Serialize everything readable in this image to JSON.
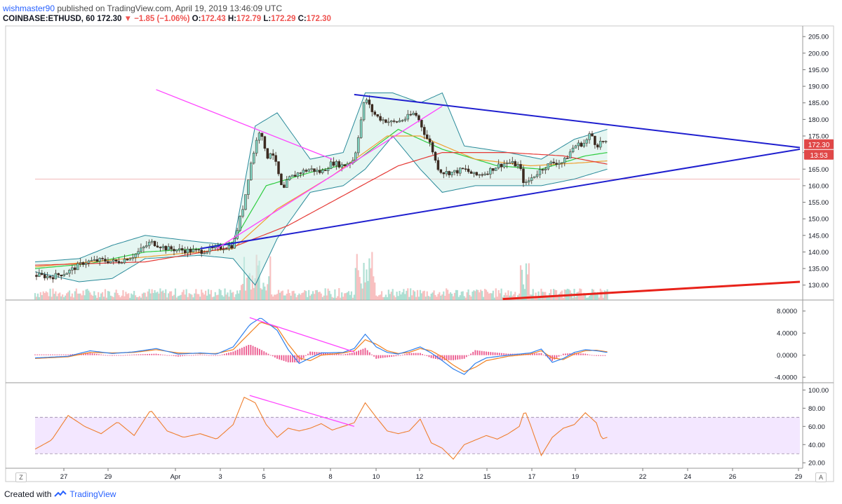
{
  "header": {
    "author": "wishmaster90",
    "published": "published on TradingView.com, April 19, 2019 13:46:09 UTC",
    "symbol": "COINBASE:ETHUSD, 60",
    "last": "172.30",
    "change": "−1.85 (−1.06%)",
    "o_label": "O:",
    "o": "172.43",
    "h_label": "H:",
    "h": "172.79",
    "l_label": "L:",
    "l": "172.29",
    "c_label": "C:",
    "c": "172.30"
  },
  "footer": {
    "created_with": "Created with",
    "brand": "TradingView"
  },
  "corner_left": "Z",
  "corner_right": "A",
  "price_badge": {
    "price": "172.30",
    "countdown": "13:53"
  },
  "colors": {
    "up": "#26a69a",
    "down": "#ef5350",
    "candle": "#3b2a20",
    "triangle": "#1f1fcf",
    "magenta": "#ff44ff",
    "ma_fast": "#2ecc40",
    "ma_mid": "#f0a030",
    "ma_slow": "#e53935",
    "bollinger": "#2a8a9a",
    "rsi": "#ef7f2f",
    "rsi_band": "#e9d4ff"
  },
  "chart_data": [
    {
      "type": "candlestick",
      "panel": "price",
      "symbol": "COINBASE:ETHUSD",
      "interval": "60",
      "x_ticks": [
        "27",
        "29",
        "Apr",
        "3",
        "5",
        "8",
        "10",
        "12",
        "15",
        "17",
        "19",
        "22",
        "24",
        "26",
        "29"
      ],
      "y_ticks": [
        130,
        135,
        140,
        145,
        150,
        155,
        160,
        165,
        170,
        175,
        180,
        185,
        190,
        195,
        200,
        205
      ],
      "ylim": [
        125.5,
        208
      ],
      "price_path": [
        [
          0,
          133
        ],
        [
          3,
          132.5
        ],
        [
          6,
          134
        ],
        [
          9,
          137
        ],
        [
          12,
          137.5
        ],
        [
          15,
          137
        ],
        [
          18,
          139
        ],
        [
          21,
          143
        ],
        [
          24,
          141
        ],
        [
          27,
          140.5
        ],
        [
          30,
          140.2
        ],
        [
          33,
          141
        ],
        [
          36,
          142
        ],
        [
          38,
          155
        ],
        [
          39,
          165
        ],
        [
          40,
          172
        ],
        [
          41,
          178
        ],
        [
          42,
          168
        ],
        [
          43,
          171
        ],
        [
          44,
          165
        ],
        [
          45,
          158
        ],
        [
          46,
          162
        ],
        [
          47,
          163
        ],
        [
          48,
          164
        ],
        [
          50,
          165
        ],
        [
          52,
          164
        ],
        [
          54,
          167
        ],
        [
          56,
          166
        ],
        [
          58,
          168
        ],
        [
          60,
          187
        ],
        [
          61,
          183
        ],
        [
          62,
          181
        ],
        [
          63,
          180
        ],
        [
          65,
          179
        ],
        [
          67,
          180
        ],
        [
          69,
          182
        ],
        [
          70,
          179
        ],
        [
          71,
          175
        ],
        [
          72,
          172
        ],
        [
          73,
          166
        ],
        [
          74,
          164
        ],
        [
          76,
          164
        ],
        [
          78,
          165
        ],
        [
          80,
          163
        ],
        [
          82,
          164
        ],
        [
          84,
          166
        ],
        [
          86,
          167
        ],
        [
          88,
          166
        ],
        [
          89,
          160
        ],
        [
          90,
          162
        ],
        [
          92,
          165
        ],
        [
          94,
          167
        ],
        [
          96,
          167
        ],
        [
          98,
          172
        ],
        [
          100,
          173
        ],
        [
          101,
          176
        ],
        [
          102,
          172
        ],
        [
          103,
          173.5
        ],
        [
          104,
          172.3
        ]
      ],
      "moving_averages": [
        {
          "name": "fast",
          "path": [
            [
              0,
              135
            ],
            [
              10,
              136.5
            ],
            [
              20,
              140
            ],
            [
              30,
              141
            ],
            [
              36,
              143
            ],
            [
              42,
              160
            ],
            [
              50,
              164
            ],
            [
              58,
              167
            ],
            [
              66,
              177
            ],
            [
              74,
              171
            ],
            [
              84,
              166
            ],
            [
              92,
              165
            ],
            [
              100,
              169
            ],
            [
              104,
              170
            ]
          ]
        },
        {
          "name": "mid",
          "path": [
            [
              0,
              135.5
            ],
            [
              20,
              138.5
            ],
            [
              36,
              141
            ],
            [
              44,
              153
            ],
            [
              54,
              163
            ],
            [
              64,
              175
            ],
            [
              70,
              175
            ],
            [
              80,
              168
            ],
            [
              90,
              166
            ],
            [
              100,
              167
            ],
            [
              104,
              167.5
            ]
          ]
        },
        {
          "name": "slow",
          "path": [
            [
              0,
              136
            ],
            [
              20,
              137
            ],
            [
              36,
              141.5
            ],
            [
              46,
              148
            ],
            [
              56,
              157
            ],
            [
              66,
              166
            ],
            [
              74,
              170
            ],
            [
              86,
              170
            ],
            [
              96,
              169
            ],
            [
              104,
              166.5
            ]
          ]
        }
      ],
      "bollinger": {
        "upper": [
          [
            0,
            137
          ],
          [
            8,
            138
          ],
          [
            14,
            142
          ],
          [
            20,
            145
          ],
          [
            30,
            143
          ],
          [
            36,
            142
          ],
          [
            40,
            178
          ],
          [
            44,
            182
          ],
          [
            50,
            168
          ],
          [
            56,
            170
          ],
          [
            60,
            188
          ],
          [
            65,
            188
          ],
          [
            70,
            185
          ],
          [
            74,
            188
          ],
          [
            78,
            172
          ],
          [
            86,
            170
          ],
          [
            92,
            168
          ],
          [
            98,
            174
          ],
          [
            104,
            177
          ]
        ],
        "lower": [
          [
            0,
            134
          ],
          [
            8,
            131
          ],
          [
            14,
            132
          ],
          [
            20,
            138
          ],
          [
            30,
            139
          ],
          [
            36,
            138
          ],
          [
            40,
            130
          ],
          [
            44,
            144
          ],
          [
            50,
            158
          ],
          [
            56,
            160
          ],
          [
            60,
            165
          ],
          [
            65,
            175
          ],
          [
            70,
            165
          ],
          [
            74,
            158
          ],
          [
            80,
            160
          ],
          [
            86,
            160
          ],
          [
            92,
            160
          ],
          [
            98,
            162
          ],
          [
            104,
            165
          ]
        ]
      },
      "trendlines": [
        {
          "name": "triangle-upper",
          "from": [
            58,
            187.5
          ],
          "to": [
            139,
            171.5
          ]
        },
        {
          "name": "triangle-lower",
          "from": [
            30,
            141
          ],
          "to": [
            139,
            171
          ]
        },
        {
          "name": "magenta-down",
          "from": [
            22,
            189
          ],
          "to": [
            54,
            168
          ]
        },
        {
          "name": "magenta-up",
          "from": [
            33,
            141
          ],
          "to": [
            74,
            184
          ]
        },
        {
          "name": "red-support",
          "from": [
            85,
            125.8
          ],
          "to": [
            139,
            131
          ]
        }
      ],
      "last_price": 172.3
    },
    {
      "type": "line",
      "panel": "macd",
      "y_ticks": [
        -4.0,
        0.0,
        4.0,
        8.0
      ],
      "ylim": [
        -5.0,
        10.0
      ],
      "macd": [
        [
          0,
          -0.5
        ],
        [
          6,
          -0.2
        ],
        [
          10,
          0.8
        ],
        [
          14,
          0.3
        ],
        [
          18,
          0.6
        ],
        [
          22,
          1.2
        ],
        [
          26,
          0.2
        ],
        [
          30,
          0.4
        ],
        [
          33,
          0.2
        ],
        [
          36,
          1.5
        ],
        [
          39,
          5.5
        ],
        [
          41,
          6.8
        ],
        [
          44,
          4.5
        ],
        [
          46,
          1.0
        ],
        [
          48,
          -1.5
        ],
        [
          50,
          -0.5
        ],
        [
          52,
          0.4
        ],
        [
          56,
          0.5
        ],
        [
          58,
          1.2
        ],
        [
          60,
          3.8
        ],
        [
          62,
          1.5
        ],
        [
          64,
          0.5
        ],
        [
          66,
          0.2
        ],
        [
          68,
          0.8
        ],
        [
          70,
          1.5
        ],
        [
          72,
          0.4
        ],
        [
          74,
          -1.0
        ],
        [
          76,
          -2.5
        ],
        [
          78,
          -3.5
        ],
        [
          80,
          -1.5
        ],
        [
          82,
          -0.5
        ],
        [
          86,
          0.0
        ],
        [
          90,
          0.4
        ],
        [
          92,
          1.1
        ],
        [
          94,
          -1.3
        ],
        [
          96,
          -0.6
        ],
        [
          98,
          0.5
        ],
        [
          100,
          1.0
        ],
        [
          102,
          0.8
        ],
        [
          104,
          0.5
        ]
      ],
      "signal": [
        [
          0,
          -0.6
        ],
        [
          6,
          -0.3
        ],
        [
          10,
          0.5
        ],
        [
          14,
          0.4
        ],
        [
          18,
          0.5
        ],
        [
          22,
          1.0
        ],
        [
          26,
          0.4
        ],
        [
          30,
          0.3
        ],
        [
          33,
          0.3
        ],
        [
          36,
          1.0
        ],
        [
          39,
          4.0
        ],
        [
          41,
          6.0
        ],
        [
          44,
          5.0
        ],
        [
          46,
          2.0
        ],
        [
          48,
          -0.5
        ],
        [
          50,
          -1.0
        ],
        [
          52,
          0.0
        ],
        [
          56,
          0.4
        ],
        [
          58,
          0.8
        ],
        [
          60,
          2.8
        ],
        [
          62,
          2.0
        ],
        [
          64,
          0.8
        ],
        [
          66,
          0.3
        ],
        [
          68,
          0.5
        ],
        [
          70,
          1.2
        ],
        [
          72,
          0.8
        ],
        [
          74,
          -0.3
        ],
        [
          76,
          -1.8
        ],
        [
          78,
          -3.0
        ],
        [
          80,
          -2.2
        ],
        [
          82,
          -1.0
        ],
        [
          86,
          -0.2
        ],
        [
          90,
          0.2
        ],
        [
          92,
          0.8
        ],
        [
          94,
          -0.5
        ],
        [
          96,
          -0.8
        ],
        [
          98,
          0.2
        ],
        [
          100,
          0.8
        ],
        [
          102,
          0.9
        ],
        [
          104,
          0.6
        ]
      ],
      "trendline": {
        "from": [
          39,
          6.8
        ],
        "to": [
          58,
          0.6
        ]
      }
    },
    {
      "type": "line",
      "panel": "rsi",
      "y_ticks": [
        20.0,
        40.0,
        60.0,
        80.0,
        100.0
      ],
      "ylim": [
        14,
        108
      ],
      "band": [
        30,
        70
      ],
      "rsi": [
        [
          0,
          35
        ],
        [
          3,
          45
        ],
        [
          6,
          72
        ],
        [
          9,
          60
        ],
        [
          12,
          52
        ],
        [
          15,
          65
        ],
        [
          18,
          50
        ],
        [
          21,
          78
        ],
        [
          24,
          55
        ],
        [
          27,
          48
        ],
        [
          30,
          52
        ],
        [
          33,
          46
        ],
        [
          36,
          62
        ],
        [
          38,
          92
        ],
        [
          40,
          86
        ],
        [
          42,
          62
        ],
        [
          44,
          48
        ],
        [
          46,
          58
        ],
        [
          48,
          55
        ],
        [
          50,
          58
        ],
        [
          52,
          63
        ],
        [
          54,
          56
        ],
        [
          56,
          60
        ],
        [
          58,
          64
        ],
        [
          60,
          86
        ],
        [
          62,
          70
        ],
        [
          64,
          55
        ],
        [
          66,
          52
        ],
        [
          68,
          55
        ],
        [
          70,
          68
        ],
        [
          72,
          42
        ],
        [
          74,
          36
        ],
        [
          76,
          24
        ],
        [
          78,
          40
        ],
        [
          80,
          45
        ],
        [
          82,
          50
        ],
        [
          84,
          46
        ],
        [
          86,
          52
        ],
        [
          88,
          60
        ],
        [
          89,
          78
        ],
        [
          90,
          62
        ],
        [
          92,
          28
        ],
        [
          94,
          48
        ],
        [
          96,
          58
        ],
        [
          98,
          62
        ],
        [
          100,
          75
        ],
        [
          102,
          64
        ],
        [
          103,
          46
        ],
        [
          104,
          48
        ]
      ],
      "trendline": {
        "from": [
          39,
          94
        ],
        "to": [
          58,
          60
        ]
      }
    }
  ]
}
